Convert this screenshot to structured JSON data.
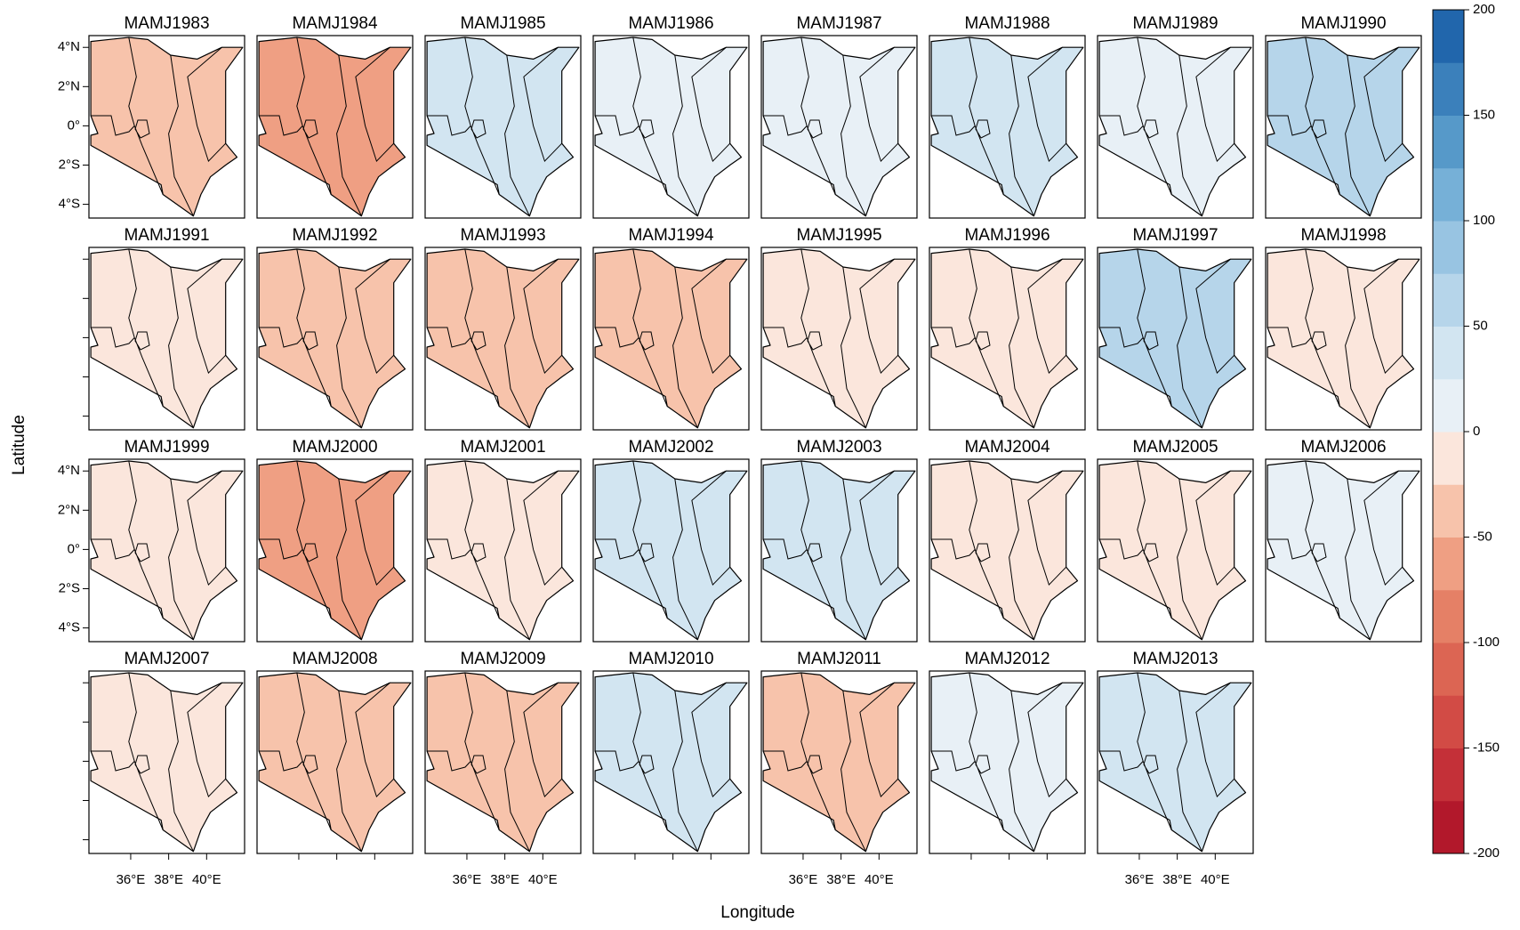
{
  "chart_data": {
    "type": "map-panels",
    "x_label": "Longitude",
    "y_label": "Latitude",
    "xlim": [
      33.8,
      42
    ],
    "ylim": [
      -4.7,
      4.6
    ],
    "xticks": [
      {
        "value": 36,
        "label": "36°E"
      },
      {
        "value": 38,
        "label": "38°E"
      },
      {
        "value": 40,
        "label": "40°E"
      }
    ],
    "yticks": [
      {
        "value": 4,
        "label": "4°N"
      },
      {
        "value": 2,
        "label": "2°N"
      },
      {
        "value": 0,
        "label": "0°"
      },
      {
        "value": -2,
        "label": "2°S"
      },
      {
        "value": -4,
        "label": "4°S"
      }
    ],
    "panels": [
      {
        "title": "MAMJ1983",
        "value": -35
      },
      {
        "title": "MAMJ1984",
        "value": -55
      },
      {
        "title": "MAMJ1985",
        "value": 35
      },
      {
        "title": "MAMJ1986",
        "value": 20
      },
      {
        "title": "MAMJ1987",
        "value": 5
      },
      {
        "title": "MAMJ1988",
        "value": 40
      },
      {
        "title": "MAMJ1989",
        "value": 20
      },
      {
        "title": "MAMJ1990",
        "value": 70
      },
      {
        "title": "MAMJ1991",
        "value": -10
      },
      {
        "title": "MAMJ1992",
        "value": -30
      },
      {
        "title": "MAMJ1993",
        "value": -35
      },
      {
        "title": "MAMJ1994",
        "value": -30
      },
      {
        "title": "MAMJ1995",
        "value": -5
      },
      {
        "title": "MAMJ1996",
        "value": -25
      },
      {
        "title": "MAMJ1997",
        "value": 55
      },
      {
        "title": "MAMJ1998",
        "value": -20
      },
      {
        "title": "MAMJ1999",
        "value": -25
      },
      {
        "title": "MAMJ2000",
        "value": -70
      },
      {
        "title": "MAMJ2001",
        "value": -10
      },
      {
        "title": "MAMJ2002",
        "value": 35
      },
      {
        "title": "MAMJ2003",
        "value": 40
      },
      {
        "title": "MAMJ2004",
        "value": -15
      },
      {
        "title": "MAMJ2005",
        "value": -15
      },
      {
        "title": "MAMJ2006",
        "value": 15
      },
      {
        "title": "MAMJ2007",
        "value": -10
      },
      {
        "title": "MAMJ2008",
        "value": -35
      },
      {
        "title": "MAMJ2009",
        "value": -45
      },
      {
        "title": "MAMJ2010",
        "value": 35
      },
      {
        "title": "MAMJ2011",
        "value": -50
      },
      {
        "title": "MAMJ2012",
        "value": 10
      },
      {
        "title": "MAMJ2013",
        "value": 45
      }
    ],
    "colorbar": {
      "ylim": [
        -200,
        200
      ],
      "yticks": [
        -200,
        -150,
        -100,
        -50,
        0,
        50,
        100,
        150,
        200
      ],
      "colors": [
        "#b2182b",
        "#c43038",
        "#d24b45",
        "#dc6553",
        "#e58066",
        "#ef9f83",
        "#f7c3ab",
        "#fbe6dc",
        "#e8f0f6",
        "#d2e5f1",
        "#b6d5ea",
        "#98c4e2",
        "#76b0d7",
        "#5699c9",
        "#3b80bb",
        "#2166ac"
      ]
    }
  }
}
